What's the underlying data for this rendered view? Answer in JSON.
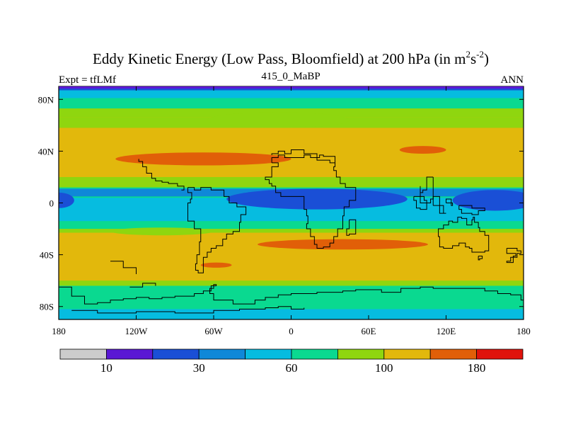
{
  "chart_data": {
    "type": "heatmap",
    "title_main": "Eddy Kinetic Energy (Low Pass, Bloomfield) at 200 hPa (in m",
    "title_exp1": "2",
    "title_mid": "s",
    "title_exp2": "-2",
    "title_close": ")",
    "subtitle_left": "Expt = tfLMf",
    "subtitle_center": "415_0_MaBP",
    "subtitle_right": "ANN",
    "x_range": [
      -180,
      180
    ],
    "y_range": [
      -90,
      90
    ],
    "x_ticks": [
      {
        "value": -180,
        "label": "180"
      },
      {
        "value": -120,
        "label": "120W"
      },
      {
        "value": -60,
        "label": "60W"
      },
      {
        "value": 0,
        "label": "0"
      },
      {
        "value": 60,
        "label": "60E"
      },
      {
        "value": 120,
        "label": "120E"
      },
      {
        "value": 180,
        "label": "180"
      }
    ],
    "y_ticks": [
      {
        "value": 80,
        "label": "80N"
      },
      {
        "value": 40,
        "label": "40N"
      },
      {
        "value": 0,
        "label": "0"
      },
      {
        "value": -40,
        "label": "40S"
      },
      {
        "value": -80,
        "label": "80S"
      }
    ],
    "levels": [
      10,
      20,
      30,
      45,
      60,
      80,
      100,
      140,
      180
    ],
    "colorbar_labels": [
      {
        "index": 1,
        "label": "10"
      },
      {
        "index": 3,
        "label": "30"
      },
      {
        "index": 5,
        "label": "60"
      },
      {
        "index": 7,
        "label": "100"
      },
      {
        "index": 9,
        "label": "180"
      }
    ],
    "bands": [
      {
        "lat_top": 90,
        "lat_bottom": 87,
        "level": 2
      },
      {
        "lat_top": 87,
        "lat_bottom": 81,
        "level": 4
      },
      {
        "lat_top": 81,
        "lat_bottom": 73,
        "level": 5
      },
      {
        "lat_top": 73,
        "lat_bottom": 66,
        "level": 6
      },
      {
        "lat_top": 66,
        "lat_bottom": 52,
        "level": 7
      },
      {
        "lat_top": 52,
        "lat_bottom": 20,
        "level": 7
      },
      {
        "lat_top": 20,
        "lat_bottom": 12,
        "level": 6
      },
      {
        "lat_top": 12,
        "lat_bottom": 4,
        "level": 5
      },
      {
        "lat_top": 4,
        "lat_bottom": -4,
        "level": 4
      },
      {
        "lat_top": -4,
        "lat_bottom": -14,
        "level": 4
      },
      {
        "lat_top": -14,
        "lat_bottom": -20,
        "level": 5
      },
      {
        "lat_top": -20,
        "lat_bottom": -23,
        "level": 6
      },
      {
        "lat_top": -23,
        "lat_bottom": -60,
        "level": 7
      },
      {
        "lat_top": -60,
        "lat_bottom": -64,
        "level": 6
      },
      {
        "lat_top": -64,
        "lat_bottom": -72,
        "level": 5
      },
      {
        "lat_top": -72,
        "lat_bottom": -82,
        "level": 5
      },
      {
        "lat_top": -82,
        "lat_bottom": -90,
        "level": 4
      }
    ],
    "patches": [
      {
        "lon": [
          -180,
          180
        ],
        "lat": [
          83,
          81,
          77,
          74,
          73,
          77,
          83
        ],
        "level": 5,
        "shape": "wave_band",
        "lat_top_fn": "north_blue"
      },
      {
        "lon": [
          -180,
          180
        ],
        "level": 6,
        "shape": "band",
        "lat_top": 66,
        "lat_bottom": 58
      },
      {
        "lon": [
          -65,
          42
        ],
        "level": 6,
        "shape": "ellipse",
        "center": [
          -10,
          64
        ],
        "radius": [
          55,
          6
        ]
      },
      {
        "lon": [
          -130,
          5
        ],
        "level": 8,
        "shape": "ellipse",
        "center": [
          -68,
          34
        ],
        "radius": [
          68,
          5
        ]
      },
      {
        "lon": [
          85,
          115
        ],
        "level": 8,
        "shape": "ellipse",
        "center": [
          102,
          41
        ],
        "radius": [
          18,
          3
        ]
      },
      {
        "lon": [
          -180,
          180
        ],
        "level": 3,
        "shape": "band",
        "lat_top": 11,
        "lat_bottom": 5
      },
      {
        "lon": [
          -55,
          80
        ],
        "level": 2,
        "shape": "ellipse",
        "center": [
          20,
          3
        ],
        "radius": [
          70,
          8
        ]
      },
      {
        "lon": [
          125,
          180
        ],
        "level": 2,
        "shape": "ellipse",
        "center": [
          158,
          2
        ],
        "radius": [
          33,
          8
        ]
      },
      {
        "lon": [
          -180,
          -170
        ],
        "level": 2,
        "shape": "ellipse",
        "center": [
          -180,
          2
        ],
        "radius": [
          12,
          6
        ]
      },
      {
        "lon": [
          -20,
          110
        ],
        "level": 8,
        "shape": "ellipse",
        "center": [
          40,
          -32
        ],
        "radius": [
          66,
          4
        ]
      },
      {
        "lon": [
          -75,
          -50
        ],
        "level": 8,
        "shape": "ellipse",
        "center": [
          -58,
          -48
        ],
        "radius": [
          12,
          2
        ]
      },
      {
        "lon": [
          -180,
          180
        ],
        "level": 6,
        "shape": "ellipse",
        "center": [
          -100,
          -22
        ],
        "radius": [
          40,
          3
        ]
      }
    ]
  },
  "colors": {
    "level_colors": [
      "#cccccc",
      "#5a18d4",
      "#1a4fd6",
      "#0f88d8",
      "#06bce0",
      "#0ad990",
      "#8fd60f",
      "#e2b80c",
      "#e15f08",
      "#e0130c"
    ],
    "frame": "#000000",
    "coast": "#000000"
  },
  "coastlines": [
    [
      [
        -15,
        31
      ],
      [
        -15,
        35
      ],
      [
        -10,
        37
      ],
      [
        -5,
        37
      ],
      [
        -5,
        35
      ],
      [
        0,
        35
      ],
      [
        10,
        37
      ],
      [
        15,
        35
      ],
      [
        20,
        33
      ],
      [
        25,
        33
      ],
      [
        30,
        31
      ],
      [
        34,
        31
      ],
      [
        34,
        36
      ],
      [
        25,
        37
      ],
      [
        22,
        35
      ],
      [
        20,
        38
      ],
      [
        15,
        38
      ],
      [
        10,
        41
      ],
      [
        5,
        41
      ],
      [
        0,
        38
      ],
      [
        -5,
        40
      ],
      [
        -10,
        38
      ],
      [
        -15,
        37
      ]
    ],
    [
      [
        -15,
        31
      ],
      [
        -10,
        28
      ],
      [
        -15,
        26
      ],
      [
        -15,
        20
      ],
      [
        -20,
        18
      ],
      [
        -17,
        15
      ],
      [
        -15,
        13
      ],
      [
        -12,
        8
      ],
      [
        -8,
        5
      ],
      [
        -3,
        5
      ],
      [
        5,
        5
      ],
      [
        8,
        5
      ],
      [
        10,
        3
      ],
      [
        10,
        -5
      ],
      [
        12,
        -10
      ],
      [
        13,
        -16
      ],
      [
        12,
        -20
      ],
      [
        15,
        -26
      ],
      [
        18,
        -32
      ],
      [
        20,
        -35
      ],
      [
        25,
        -34
      ],
      [
        30,
        -31
      ],
      [
        33,
        -26
      ],
      [
        36,
        -20
      ],
      [
        40,
        -16
      ],
      [
        40,
        -10
      ],
      [
        41,
        -3
      ],
      [
        45,
        2
      ],
      [
        50,
        8
      ],
      [
        50,
        12
      ],
      [
        44,
        12
      ],
      [
        42,
        15
      ],
      [
        38,
        20
      ],
      [
        35,
        25
      ],
      [
        33,
        28
      ],
      [
        34,
        31
      ]
    ],
    [
      [
        45,
        -13
      ],
      [
        50,
        -15
      ],
      [
        50,
        -24
      ],
      [
        45,
        -25
      ],
      [
        43,
        -20
      ],
      [
        45,
        -13
      ]
    ],
    [
      [
        -80,
        12
      ],
      [
        -75,
        10
      ],
      [
        -70,
        12
      ],
      [
        -62,
        10
      ],
      [
        -52,
        5
      ],
      [
        -48,
        0
      ],
      [
        -42,
        -3
      ],
      [
        -35,
        -5
      ],
      [
        -35,
        -9
      ],
      [
        -39,
        -15
      ],
      [
        -40,
        -22
      ],
      [
        -45,
        -24
      ],
      [
        -50,
        -28
      ],
      [
        -53,
        -33
      ],
      [
        -58,
        -35
      ],
      [
        -62,
        -38
      ],
      [
        -65,
        -42
      ],
      [
        -68,
        -48
      ],
      [
        -68,
        -54
      ],
      [
        -72,
        -52
      ],
      [
        -74,
        -47
      ],
      [
        -73,
        -40
      ],
      [
        -71,
        -30
      ],
      [
        -70,
        -20
      ],
      [
        -75,
        -14
      ],
      [
        -80,
        -5
      ],
      [
        -80,
        0
      ],
      [
        -78,
        3
      ],
      [
        -77,
        8
      ],
      [
        -80,
        9
      ],
      [
        -80,
        12
      ]
    ],
    [
      [
        -85,
        10
      ],
      [
        -83,
        13
      ],
      [
        -88,
        15
      ],
      [
        -92,
        15
      ],
      [
        -95,
        16
      ],
      [
        -100,
        17
      ],
      [
        -105,
        19
      ],
      [
        -108,
        23
      ],
      [
        -112,
        28
      ],
      [
        -115,
        32
      ],
      [
        -118,
        34
      ]
    ],
    [
      [
        110,
        20
      ],
      [
        105,
        18
      ],
      [
        105,
        10
      ],
      [
        102,
        8
      ],
      [
        100,
        13
      ],
      [
        100,
        5
      ],
      [
        103,
        2
      ],
      [
        105,
        0
      ],
      [
        108,
        3
      ],
      [
        110,
        10
      ],
      [
        110,
        20
      ]
    ],
    [
      [
        95,
        5
      ],
      [
        100,
        0
      ],
      [
        105,
        -5
      ],
      [
        100,
        -4
      ],
      [
        97,
        2
      ],
      [
        95,
        5
      ]
    ],
    [
      [
        110,
        -2
      ],
      [
        115,
        -8
      ],
      [
        120,
        -8
      ],
      [
        118,
        -2
      ],
      [
        115,
        5
      ],
      [
        110,
        3
      ],
      [
        110,
        -2
      ]
    ],
    [
      [
        120,
        0
      ],
      [
        125,
        -2
      ],
      [
        124,
        3
      ],
      [
        120,
        0
      ]
    ],
    [
      [
        130,
        -2
      ],
      [
        140,
        -4
      ],
      [
        150,
        -6
      ],
      [
        145,
        -9
      ],
      [
        140,
        -8
      ],
      [
        132,
        -5
      ],
      [
        130,
        -2
      ]
    ],
    [
      [
        114,
        -22
      ],
      [
        114,
        -26
      ],
      [
        115,
        -30
      ],
      [
        115,
        -34
      ],
      [
        118,
        -35
      ],
      [
        125,
        -33
      ],
      [
        130,
        -31
      ],
      [
        135,
        -34
      ],
      [
        138,
        -35
      ],
      [
        140,
        -38
      ],
      [
        145,
        -38
      ],
      [
        150,
        -37
      ],
      [
        153,
        -30
      ],
      [
        153,
        -25
      ],
      [
        150,
        -22
      ],
      [
        146,
        -19
      ],
      [
        145,
        -15
      ],
      [
        142,
        -11
      ],
      [
        141,
        -13
      ],
      [
        140,
        -17
      ],
      [
        136,
        -15
      ],
      [
        136,
        -12
      ],
      [
        132,
        -11
      ],
      [
        129,
        -15
      ],
      [
        125,
        -14
      ],
      [
        122,
        -17
      ],
      [
        118,
        -20
      ],
      [
        114,
        -22
      ]
    ],
    [
      [
        145,
        -41
      ],
      [
        148,
        -41
      ],
      [
        148,
        -43
      ],
      [
        146,
        -44
      ],
      [
        145,
        -41
      ]
    ],
    [
      [
        167,
        -35
      ],
      [
        175,
        -37
      ],
      [
        178,
        -39
      ],
      [
        175,
        -42
      ],
      [
        170,
        -45
      ],
      [
        167,
        -46
      ],
      [
        172,
        -41
      ],
      [
        174,
        -39
      ],
      [
        167,
        -35
      ]
    ],
    [
      [
        -180,
        -65
      ],
      [
        -170,
        -72
      ],
      [
        -160,
        -78
      ],
      [
        -150,
        -77
      ],
      [
        -140,
        -75
      ],
      [
        -130,
        -74
      ],
      [
        -120,
        -73
      ],
      [
        -110,
        -74
      ],
      [
        -100,
        -73
      ],
      [
        -90,
        -72
      ],
      [
        -80,
        -72
      ],
      [
        -75,
        -70
      ],
      [
        -68,
        -68
      ],
      [
        -62,
        -64
      ],
      [
        -58,
        -63
      ],
      [
        -60,
        -66
      ],
      [
        -63,
        -70
      ],
      [
        -60,
        -75
      ],
      [
        -45,
        -78
      ],
      [
        -35,
        -78
      ],
      [
        -28,
        -75
      ],
      [
        -20,
        -73
      ],
      [
        -10,
        -71
      ],
      [
        0,
        -70
      ],
      [
        10,
        -70
      ],
      [
        20,
        -69
      ],
      [
        30,
        -69
      ],
      [
        40,
        -68
      ],
      [
        50,
        -67
      ],
      [
        60,
        -67
      ],
      [
        70,
        -69
      ],
      [
        75,
        -69
      ],
      [
        85,
        -66
      ],
      [
        100,
        -65
      ],
      [
        110,
        -66
      ],
      [
        120,
        -66
      ],
      [
        130,
        -66
      ],
      [
        140,
        -66
      ],
      [
        150,
        -68
      ],
      [
        160,
        -70
      ],
      [
        170,
        -71
      ],
      [
        178,
        -75
      ],
      [
        180,
        -78
      ]
    ],
    [
      [
        -170,
        -83
      ],
      [
        -150,
        -85
      ],
      [
        -120,
        -84
      ],
      [
        -90,
        -85
      ],
      [
        -60,
        -83
      ],
      [
        -40,
        -82
      ],
      [
        -20,
        -81
      ],
      [
        -10,
        -80
      ],
      [
        0,
        -82
      ],
      [
        10,
        -81
      ]
    ],
    [
      [
        -140,
        -45
      ],
      [
        -130,
        -50
      ],
      [
        -120,
        -55
      ]
    ],
    [
      [
        -125,
        -65
      ],
      [
        -115,
        -62
      ],
      [
        -105,
        -64
      ]
    ]
  ]
}
